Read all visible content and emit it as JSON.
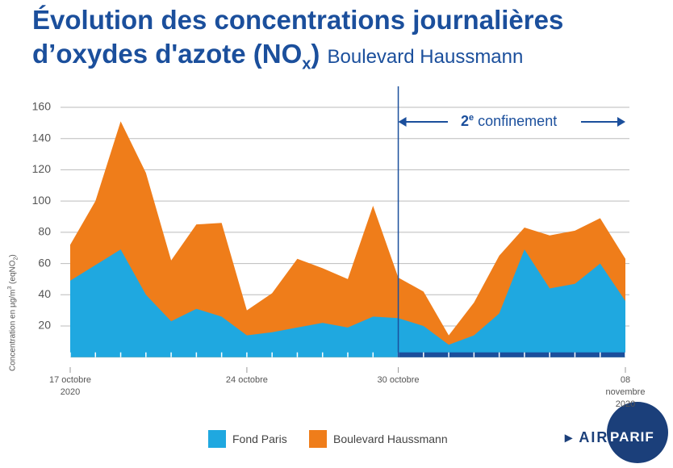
{
  "chart_data": {
    "type": "area",
    "title": [
      "Évolution des concentrations journalières",
      "d’oxydes d'azote (NO",
      "x",
      ")"
    ],
    "subtitle": "Boulevard Haussmann",
    "y_label": [
      "Concentration en µg/m",
      "3",
      " (eqNO",
      "2",
      ")"
    ],
    "annotation": [
      "2",
      "e",
      " confinement"
    ],
    "categories": [
      "17 octobre\n2020",
      null,
      null,
      null,
      null,
      null,
      null,
      "24 octobre",
      null,
      null,
      null,
      null,
      null,
      "30 octobre",
      null,
      null,
      null,
      null,
      null,
      null,
      null,
      null,
      "08 novembre\n2020"
    ],
    "series": [
      {
        "name": "Boulevard Haussmann",
        "color": "#ef7d1a",
        "values": [
          72,
          100,
          151,
          118,
          62,
          85,
          86,
          30,
          41,
          63,
          57,
          50,
          97,
          51,
          42,
          14,
          35,
          65,
          83,
          78,
          81,
          89,
          63
        ]
      },
      {
        "name": "Fond Paris",
        "color": "#1fa8e0",
        "values": [
          49,
          59,
          69,
          40,
          23,
          31,
          26,
          14,
          16,
          19,
          22,
          19,
          26,
          25,
          20,
          8,
          14,
          28,
          69,
          44,
          47,
          60,
          36
        ]
      }
    ],
    "legend_order": [
      1,
      0
    ],
    "ylim": [
      0,
      160
    ],
    "yticks": [
      20,
      40,
      60,
      80,
      100,
      120,
      140,
      160
    ],
    "grid": true,
    "logo": [
      "AIR",
      "PARIF"
    ]
  }
}
